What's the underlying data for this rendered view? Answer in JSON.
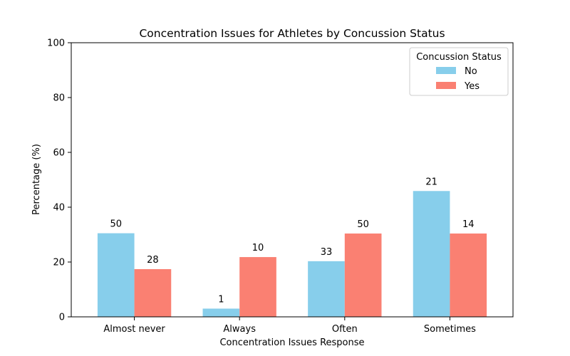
{
  "chart_data": {
    "type": "bar",
    "title": "Concentration Issues for Athletes by Concussion Status",
    "xlabel": "Concentration Issues Response",
    "ylabel": "Percentage (%)",
    "ylim": [
      0,
      100
    ],
    "yticks": [
      0,
      20,
      40,
      60,
      80,
      100
    ],
    "grid": false,
    "categories": [
      "Almost never",
      "Always",
      "Often",
      "Sometimes"
    ],
    "series": [
      {
        "name": "No",
        "color": "#87CEEB",
        "values": [
          30.5,
          3.0,
          20.3,
          45.9
        ],
        "labels": [
          "50",
          "1",
          "33",
          "21"
        ]
      },
      {
        "name": "Yes",
        "color": "#FA8072",
        "values": [
          17.4,
          21.8,
          30.4,
          30.4
        ],
        "labels": [
          "28",
          "10",
          "50",
          "14"
        ]
      }
    ],
    "legend": {
      "title": "Concussion Status",
      "position": "top-right"
    }
  }
}
